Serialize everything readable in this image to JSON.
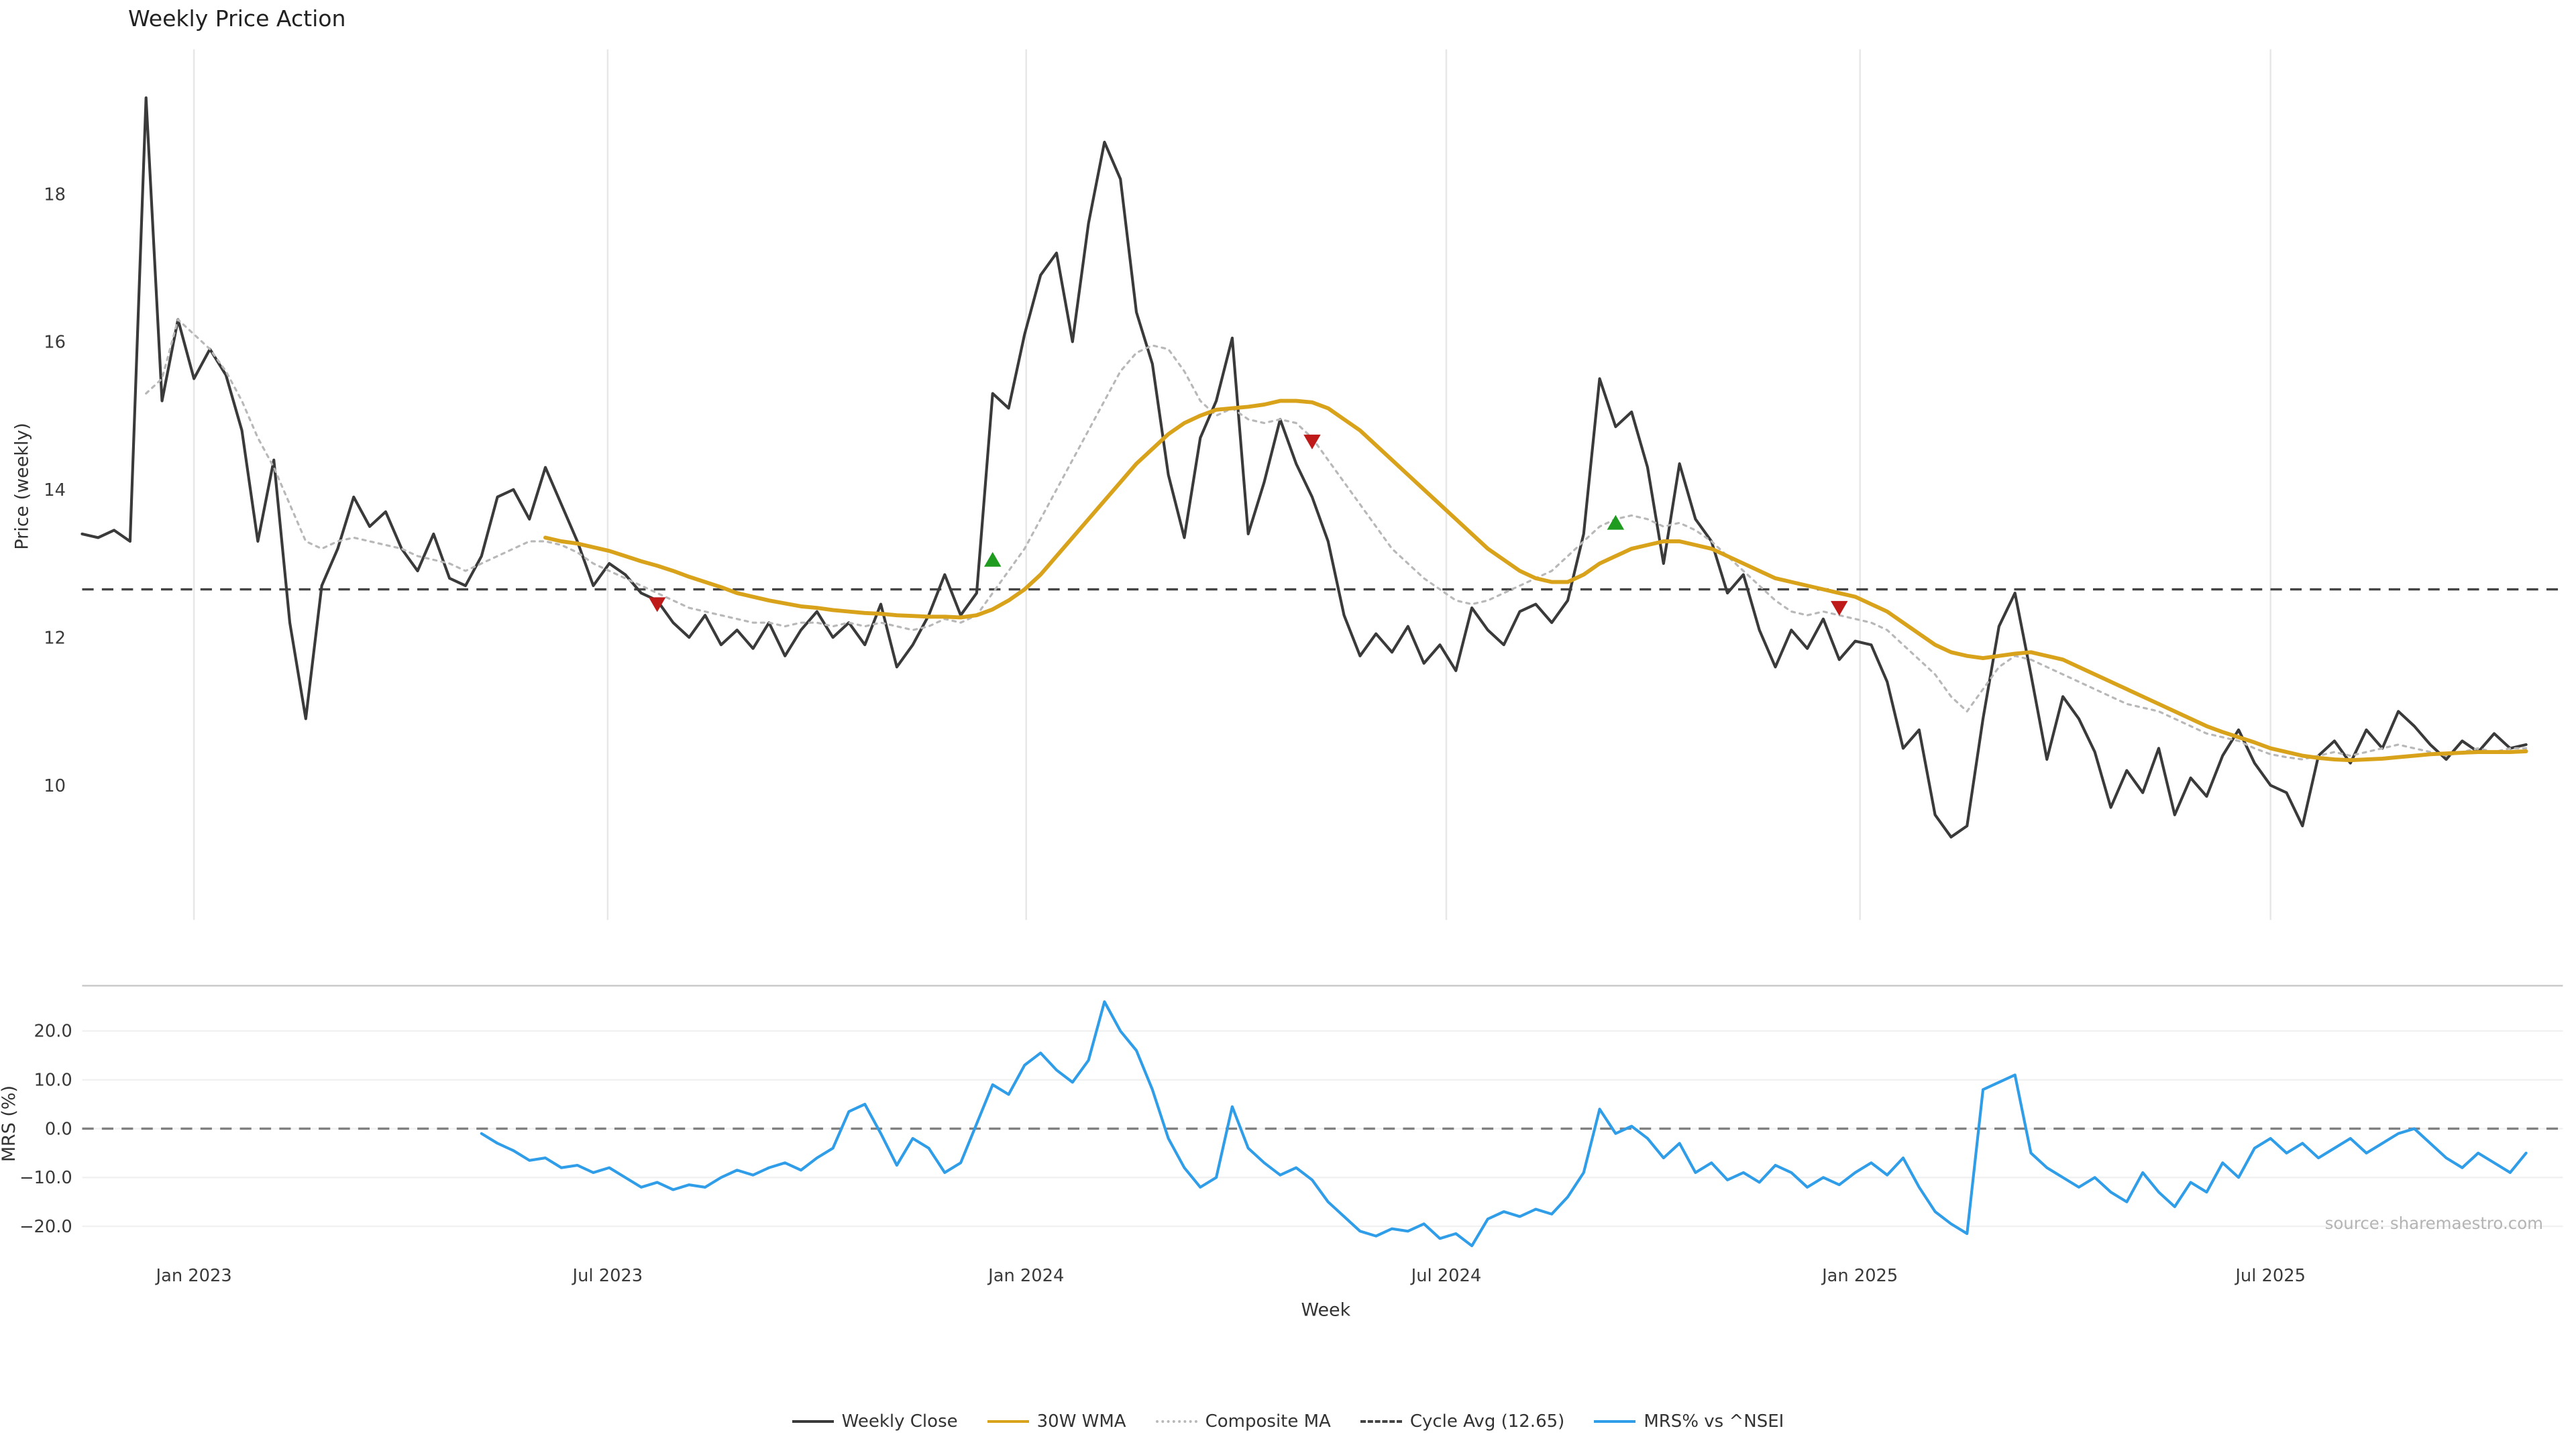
{
  "title": "Weekly Price Action",
  "source": "source: sharemaestro.com",
  "axes": {
    "x_label": "Week",
    "price_label": "Price (weekly)",
    "mrs_label": "MRS (%)"
  },
  "legend": {
    "items": [
      {
        "label": "Weekly Close",
        "color": "#3a3a3a",
        "style": "solid"
      },
      {
        "label": "30W WMA",
        "color": "#d9a21b",
        "style": "solid"
      },
      {
        "label": "Composite MA",
        "color": "#b8b8b8",
        "style": "dotted"
      },
      {
        "label": "Cycle Avg (12.65)",
        "color": "#444444",
        "style": "dashed"
      },
      {
        "label": "MRS% vs ^NSEI",
        "color": "#2f9de8",
        "style": "solid"
      }
    ]
  },
  "chart_data": {
    "type": "line",
    "title": "Weekly Price Action",
    "xlabel": "Week",
    "grid": "vertical-top-panel",
    "legend_position": "bottom-center",
    "x_ticks": [
      {
        "label": "Jan 2023",
        "week": 7.0
      },
      {
        "label": "Jul 2023",
        "week": 32.9
      },
      {
        "label": "Jan 2024",
        "week": 59.1
      },
      {
        "label": "Jul 2024",
        "week": 85.4
      },
      {
        "label": "Jan 2025",
        "week": 111.3
      },
      {
        "label": "Jul 2025",
        "week": 137.0
      }
    ],
    "panels": {
      "price": {
        "ylabel": "Price (weekly)",
        "ylim": [
          8.2,
          19.95
        ],
        "ticks": [
          {
            "label": "18",
            "value": 18
          },
          {
            "label": "16",
            "value": 16
          },
          {
            "label": "14",
            "value": 14
          },
          {
            "label": "12",
            "value": 12
          },
          {
            "label": "10",
            "value": 10
          }
        ],
        "ref_line": {
          "name": "Cycle Avg",
          "value": 12.65,
          "color": "#444444",
          "style": "dashed"
        }
      },
      "mrs": {
        "ylabel": "MRS (%)",
        "ylim": [
          -26,
          29
        ],
        "ticks": [
          {
            "label": "20.0",
            "value": 20
          },
          {
            "label": "10.0",
            "value": 10
          },
          {
            "label": "0.0",
            "value": 0
          },
          {
            "label": "−10.0",
            "value": -10
          },
          {
            "label": "−20.0",
            "value": -20
          }
        ],
        "ref_line": {
          "name": "Zero",
          "value": 0,
          "color": "#808080",
          "style": "dashed"
        }
      }
    },
    "signal_colors": {
      "buy": "#1f9c1f",
      "sell": "#bf1a1a"
    },
    "signals": [
      {
        "type": "sell",
        "week": 36,
        "value": 12.45
      },
      {
        "type": "buy",
        "week": 57,
        "value": 13.05
      },
      {
        "type": "sell",
        "week": 77,
        "value": 14.65
      },
      {
        "type": "buy",
        "week": 96,
        "value": 13.55
      },
      {
        "type": "sell",
        "week": 110,
        "value": 12.4
      }
    ],
    "series": [
      {
        "name": "Weekly Close",
        "panel": "price",
        "color": "#3a3a3a",
        "width": 1.7,
        "offset": 0,
        "values": [
          13.4,
          13.35,
          13.45,
          13.3,
          19.3,
          15.2,
          16.3,
          15.5,
          15.9,
          15.55,
          14.8,
          13.3,
          14.4,
          12.2,
          10.9,
          12.7,
          13.2,
          13.9,
          13.5,
          13.7,
          13.2,
          12.9,
          13.4,
          12.8,
          12.7,
          13.1,
          13.9,
          14.0,
          13.6,
          14.3,
          13.8,
          13.3,
          12.7,
          13.0,
          12.85,
          12.6,
          12.5,
          12.2,
          12.0,
          12.3,
          11.9,
          12.1,
          11.85,
          12.2,
          11.75,
          12.1,
          12.35,
          12.0,
          12.2,
          11.9,
          12.45,
          11.6,
          11.9,
          12.3,
          12.85,
          12.3,
          12.6,
          15.3,
          15.1,
          16.1,
          16.9,
          17.2,
          16.0,
          17.6,
          18.7,
          18.2,
          16.4,
          15.7,
          14.2,
          13.35,
          14.7,
          15.2,
          16.05,
          13.4,
          14.1,
          14.95,
          14.35,
          13.9,
          13.3,
          12.3,
          11.75,
          12.05,
          11.8,
          12.15,
          11.65,
          11.9,
          11.55,
          12.4,
          12.1,
          11.9,
          12.35,
          12.45,
          12.2,
          12.5,
          13.4,
          15.5,
          14.85,
          15.05,
          14.3,
          13.0,
          14.35,
          13.6,
          13.3,
          12.6,
          12.85,
          12.1,
          11.6,
          12.1,
          11.85,
          12.25,
          11.7,
          11.95,
          11.9,
          11.4,
          10.5,
          10.75,
          9.6,
          9.3,
          9.45,
          10.9,
          12.15,
          12.6,
          11.5,
          10.35,
          11.2,
          10.9,
          10.45,
          9.7,
          10.2,
          9.9,
          10.5,
          9.6,
          10.1,
          9.85,
          10.4,
          10.75,
          10.3,
          10.0,
          9.9,
          9.45,
          10.4,
          10.6,
          10.3,
          10.75,
          10.5,
          11.0,
          10.8,
          10.55,
          10.35,
          10.6,
          10.45,
          10.7,
          10.5,
          10.55
        ]
      },
      {
        "name": "Composite MA",
        "panel": "price",
        "color": "#b8b8b8",
        "width": 1.3,
        "dash": "2 3",
        "offset": 4,
        "values": [
          15.3,
          15.5,
          16.3,
          16.1,
          15.9,
          15.6,
          15.2,
          14.7,
          14.3,
          13.8,
          13.3,
          13.2,
          13.3,
          13.35,
          13.3,
          13.25,
          13.2,
          13.1,
          13.05,
          13.0,
          12.9,
          13.0,
          13.1,
          13.2,
          13.3,
          13.3,
          13.25,
          13.15,
          13.0,
          12.9,
          12.8,
          12.7,
          12.6,
          12.5,
          12.4,
          12.35,
          12.3,
          12.25,
          12.2,
          12.2,
          12.15,
          12.2,
          12.2,
          12.15,
          12.2,
          12.15,
          12.2,
          12.15,
          12.1,
          12.15,
          12.25,
          12.2,
          12.3,
          12.6,
          12.9,
          13.2,
          13.6,
          14.0,
          14.4,
          14.8,
          15.2,
          15.6,
          15.85,
          15.95,
          15.9,
          15.6,
          15.2,
          15.0,
          15.1,
          14.95,
          14.9,
          14.95,
          14.9,
          14.7,
          14.4,
          14.1,
          13.8,
          13.5,
          13.2,
          13.0,
          12.8,
          12.65,
          12.5,
          12.45,
          12.5,
          12.6,
          12.7,
          12.8,
          12.9,
          13.1,
          13.3,
          13.5,
          13.6,
          13.65,
          13.6,
          13.5,
          13.55,
          13.45,
          13.3,
          13.1,
          12.9,
          12.7,
          12.5,
          12.35,
          12.3,
          12.35,
          12.3,
          12.25,
          12.2,
          12.1,
          11.9,
          11.7,
          11.5,
          11.2,
          11.0,
          11.3,
          11.6,
          11.75,
          11.7,
          11.6,
          11.5,
          11.4,
          11.3,
          11.2,
          11.1,
          11.05,
          11.0,
          10.9,
          10.8,
          10.7,
          10.65,
          10.6,
          10.5,
          10.42,
          10.38,
          10.35,
          10.4,
          10.45,
          10.4,
          10.45,
          10.5,
          10.55,
          10.5,
          10.45,
          10.4,
          10.45,
          10.5,
          10.45,
          10.5,
          10.5
        ]
      },
      {
        "name": "30W WMA",
        "panel": "price",
        "color": "#d9a21b",
        "width": 2.4,
        "offset": 29,
        "values": [
          13.35,
          13.3,
          13.27,
          13.22,
          13.17,
          13.1,
          13.03,
          12.97,
          12.9,
          12.82,
          12.75,
          12.68,
          12.6,
          12.55,
          12.5,
          12.46,
          12.42,
          12.4,
          12.37,
          12.35,
          12.33,
          12.32,
          12.3,
          12.29,
          12.28,
          12.28,
          12.27,
          12.3,
          12.38,
          12.5,
          12.65,
          12.85,
          13.1,
          13.35,
          13.6,
          13.85,
          14.1,
          14.35,
          14.55,
          14.75,
          14.9,
          15.0,
          15.08,
          15.1,
          15.12,
          15.15,
          15.2,
          15.2,
          15.18,
          15.1,
          14.95,
          14.8,
          14.6,
          14.4,
          14.2,
          14.0,
          13.8,
          13.6,
          13.4,
          13.2,
          13.05,
          12.9,
          12.8,
          12.75,
          12.75,
          12.85,
          13.0,
          13.1,
          13.2,
          13.25,
          13.3,
          13.3,
          13.25,
          13.2,
          13.1,
          13.0,
          12.9,
          12.8,
          12.75,
          12.7,
          12.65,
          12.6,
          12.55,
          12.45,
          12.35,
          12.2,
          12.05,
          11.9,
          11.8,
          11.75,
          11.72,
          11.75,
          11.78,
          11.8,
          11.75,
          11.7,
          11.6,
          11.5,
          11.4,
          11.3,
          11.2,
          11.1,
          11.0,
          10.9,
          10.8,
          10.72,
          10.65,
          10.58,
          10.5,
          10.45,
          10.4,
          10.37,
          10.35,
          10.34,
          10.35,
          10.36,
          10.38,
          10.4,
          10.42,
          10.43,
          10.44,
          10.45,
          10.45,
          10.45,
          10.46
        ]
      },
      {
        "name": "MRS% vs ^NSEI",
        "panel": "mrs",
        "color": "#2f9de8",
        "width": 1.7,
        "offset": 25,
        "values": [
          -1,
          -3,
          -4.5,
          -6.5,
          -6,
          -8,
          -7.5,
          -9,
          -8,
          -10,
          -12,
          -11,
          -12.5,
          -11.5,
          -12,
          -10,
          -8.5,
          -9.5,
          -8,
          -7,
          -8.5,
          -6,
          -4,
          3.5,
          5,
          -1,
          -7.5,
          -2,
          -4,
          -9,
          -7,
          1,
          9,
          7,
          13,
          15.5,
          12,
          9.5,
          14,
          26,
          20,
          16,
          8,
          -2,
          -8,
          -12,
          -10,
          4.5,
          -4,
          -7,
          -9.5,
          -8,
          -10.5,
          -15,
          -18,
          -21,
          -22,
          -20.5,
          -21,
          -19.5,
          -22.5,
          -21.5,
          -24,
          -18.5,
          -17,
          -18,
          -16.5,
          -17.5,
          -14,
          -9,
          4,
          -1,
          0.5,
          -2,
          -6,
          -3,
          -9,
          -7,
          -10.5,
          -9,
          -11,
          -7.5,
          -9,
          -12,
          -10,
          -11.5,
          -9,
          -7,
          -9.5,
          -6,
          -12,
          -17,
          -19.5,
          -21.5,
          8,
          9.5,
          11,
          -5,
          -8,
          -10,
          -12,
          -10,
          -13,
          -15,
          -9,
          -13,
          -16,
          -11,
          -13,
          -7,
          -10,
          -4,
          -2,
          -5,
          -3,
          -6,
          -4,
          -2,
          -5,
          -3,
          -1,
          0,
          -3,
          -6,
          -8,
          -5,
          -7,
          -9,
          -5
        ]
      }
    ]
  }
}
